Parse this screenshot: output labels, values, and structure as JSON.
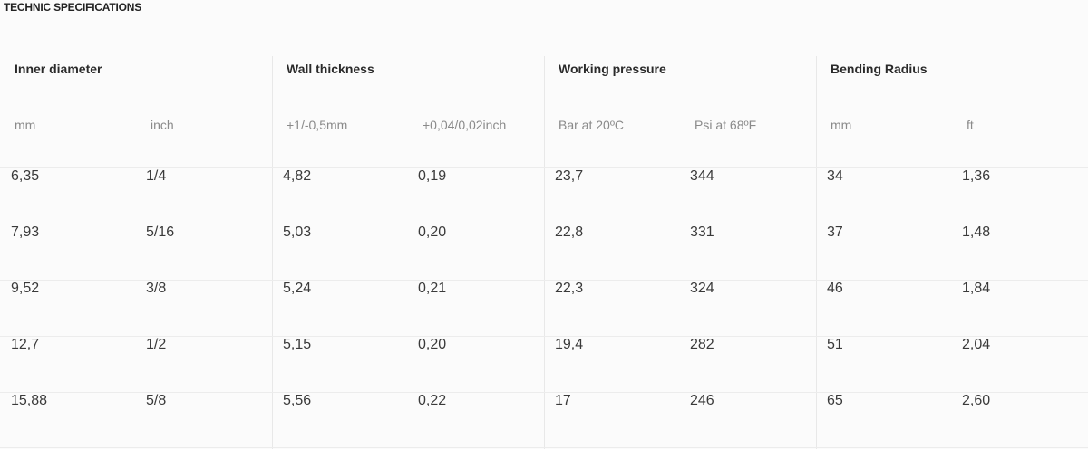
{
  "page": {
    "title": "TECHNIC SPECIFICATIONS"
  },
  "table": {
    "groups": [
      {
        "label": "Inner diameter",
        "units": [
          "mm",
          "inch"
        ]
      },
      {
        "label": "Wall thickness",
        "units": [
          "+1/-0,5mm",
          "+0,04/0,02inch"
        ]
      },
      {
        "label": "Working pressure",
        "units": [
          "Bar at 20ºC",
          "Psi at 68ºF"
        ]
      },
      {
        "label": "Bending Radius",
        "units": [
          "mm",
          "ft"
        ]
      }
    ],
    "rows": [
      [
        "6,35",
        "1/4",
        "4,82",
        "0,19",
        "23,7",
        "344",
        "34",
        "1,36"
      ],
      [
        "7,93",
        "5/16",
        "5,03",
        "0,20",
        "22,8",
        "331",
        "37",
        "1,48"
      ],
      [
        "9,52",
        "3/8",
        "5,24",
        "0,21",
        "22,3",
        "324",
        "46",
        "1,84"
      ],
      [
        "12,7",
        "1/2",
        "5,15",
        "0,20",
        "19,4",
        "282",
        "51",
        "2,04"
      ],
      [
        "15,88",
        "5/8",
        "5,56",
        "0,22",
        "17",
        "246",
        "65",
        "2,60"
      ]
    ]
  }
}
